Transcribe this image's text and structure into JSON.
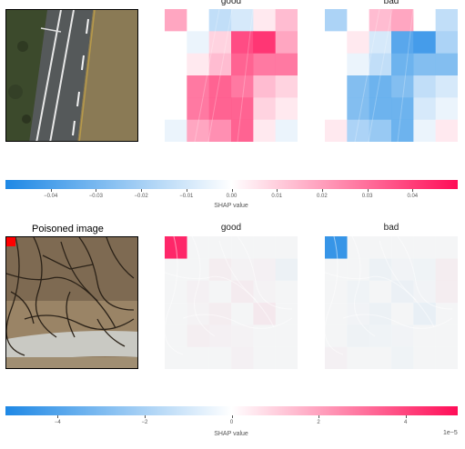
{
  "colors": {
    "negative": "#1e88e5",
    "positive": "#ff0d57",
    "neutral": "#ffffff"
  },
  "chart_data": [
    {
      "type": "heatmap",
      "title": "good",
      "grid": [
        [
          0.02,
          0.0,
          -0.015,
          -0.01,
          0.005,
          0.015
        ],
        [
          0.0,
          -0.005,
          0.01,
          0.04,
          0.045,
          0.02
        ],
        [
          0.0,
          0.005,
          0.015,
          0.035,
          0.03,
          0.03
        ],
        [
          0.0,
          0.03,
          0.035,
          0.03,
          0.015,
          0.01
        ],
        [
          0.0,
          0.03,
          0.035,
          0.035,
          0.01,
          0.005
        ],
        [
          -0.005,
          0.02,
          0.025,
          0.035,
          0.005,
          -0.005
        ]
      ],
      "vlim": [
        -0.05,
        0.05
      ]
    },
    {
      "type": "heatmap",
      "title": "bad",
      "grid": [
        [
          -0.02,
          0.0,
          0.015,
          0.02,
          0.0,
          -0.015
        ],
        [
          0.0,
          0.005,
          -0.01,
          -0.04,
          -0.045,
          -0.02
        ],
        [
          0.0,
          -0.005,
          -0.015,
          -0.035,
          -0.03,
          -0.03
        ],
        [
          0.0,
          -0.03,
          -0.035,
          -0.03,
          -0.015,
          -0.01
        ],
        [
          0.0,
          -0.03,
          -0.035,
          -0.035,
          -0.01,
          -0.005
        ],
        [
          0.005,
          -0.02,
          -0.025,
          -0.035,
          -0.005,
          0.005
        ]
      ],
      "vlim": [
        -0.05,
        0.05
      ]
    },
    {
      "type": "bar",
      "xlabel": "SHAP value",
      "xlim": [
        -0.05,
        0.05
      ],
      "tick_values": [
        -0.04,
        -0.03,
        -0.02,
        -0.01,
        0.0,
        0.01,
        0.02,
        0.03,
        0.04
      ],
      "tick_labels": [
        "−0.04",
        "−0.03",
        "−0.02",
        "−0.01",
        "0.00",
        "0.01",
        "0.02",
        "0.03",
        "0.04"
      ]
    },
    {
      "type": "heatmap",
      "title": "good",
      "caption": "Poisoned image",
      "grid": [
        [
          5.0,
          0.0,
          0.0,
          0.0,
          0.0,
          0.0
        ],
        [
          0.0,
          0.0,
          0.5,
          0.2,
          0.3,
          -0.5
        ],
        [
          0.0,
          0.3,
          0.0,
          0.6,
          0.2,
          0.0
        ],
        [
          0.0,
          0.2,
          0.5,
          0.0,
          0.8,
          0.0
        ],
        [
          0.0,
          0.4,
          0.3,
          0.2,
          0.0,
          0.0
        ],
        [
          0.0,
          0.0,
          0.0,
          0.3,
          0.0,
          0.0
        ]
      ],
      "vlim": [
        -5.2,
        5.2
      ]
    },
    {
      "type": "heatmap",
      "title": "bad",
      "grid": [
        [
          -5.0,
          0.0,
          0.0,
          0.0,
          0.0,
          0.0
        ],
        [
          0.0,
          0.0,
          -0.5,
          -0.2,
          -0.3,
          0.5
        ],
        [
          0.0,
          -0.3,
          0.0,
          -0.6,
          -0.2,
          0.5
        ],
        [
          0.0,
          -0.2,
          -0.5,
          0.0,
          -0.8,
          0.0
        ],
        [
          0.0,
          -0.4,
          -0.3,
          -0.2,
          0.0,
          0.0
        ],
        [
          0.3,
          0.0,
          0.0,
          -0.3,
          0.0,
          0.0
        ]
      ],
      "vlim": [
        -5.2,
        5.2
      ]
    },
    {
      "type": "bar",
      "xlabel": "SHAP value",
      "xlim": [
        -5.2,
        5.2
      ],
      "tick_values": [
        -4,
        -2,
        0,
        2,
        4
      ],
      "tick_labels": [
        "−4",
        "−2",
        "0",
        "2",
        "4"
      ],
      "exponent_label": "1e−5"
    }
  ]
}
